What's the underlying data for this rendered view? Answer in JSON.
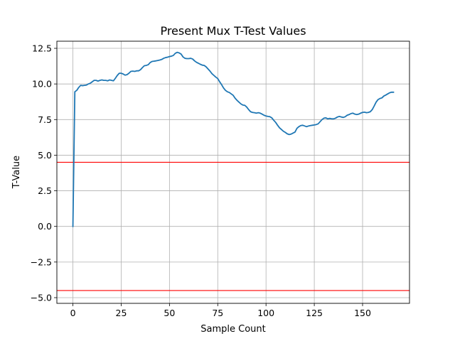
{
  "chart_data": {
    "type": "line",
    "title": "Present Mux T-Test Values",
    "xlabel": "Sample Count",
    "ylabel": "T-Value",
    "xlim": [
      -8.3,
      174.3
    ],
    "ylim": [
      -5.4,
      13.0
    ],
    "x_ticks": [
      0,
      25,
      50,
      75,
      100,
      125,
      150
    ],
    "x_tick_labels": [
      "0",
      "25",
      "50",
      "75",
      "100",
      "125",
      "150"
    ],
    "y_ticks": [
      -5.0,
      -2.5,
      0.0,
      2.5,
      5.0,
      7.5,
      10.0,
      12.5
    ],
    "y_tick_labels": [
      "−5.0",
      "−2.5",
      "0.0",
      "2.5",
      "5.0",
      "7.5",
      "10.0",
      "12.5"
    ],
    "grid": true,
    "series": [
      {
        "color": "#1f77b4",
        "x": [
          0,
          1,
          2,
          3,
          4,
          5,
          6,
          7,
          8,
          9,
          10,
          11,
          12,
          13,
          14,
          15,
          16,
          17,
          18,
          19,
          20,
          21,
          22,
          23,
          24,
          25,
          26,
          27,
          28,
          29,
          30,
          31,
          32,
          33,
          34,
          35,
          36,
          37,
          38,
          39,
          40,
          41,
          42,
          43,
          44,
          45,
          46,
          47,
          48,
          49,
          50,
          51,
          52,
          53,
          54,
          55,
          56,
          57,
          58,
          59,
          60,
          61,
          62,
          63,
          64,
          65,
          66,
          67,
          68,
          69,
          70,
          71,
          72,
          73,
          74,
          75,
          76,
          77,
          78,
          79,
          80,
          81,
          82,
          83,
          84,
          85,
          86,
          87,
          88,
          89,
          90,
          91,
          92,
          93,
          94,
          95,
          96,
          97,
          98,
          99,
          100,
          101,
          102,
          103,
          104,
          105,
          106,
          107,
          108,
          109,
          110,
          111,
          112,
          113,
          114,
          115,
          116,
          117,
          118,
          119,
          120,
          121,
          122,
          123,
          124,
          125,
          126,
          127,
          128,
          129,
          130,
          131,
          132,
          133,
          134,
          135,
          136,
          137,
          138,
          139,
          140,
          141,
          142,
          143,
          144,
          145,
          146,
          147,
          148,
          149,
          150,
          151,
          152,
          153,
          154,
          155,
          156,
          157,
          158,
          159,
          160,
          161,
          162,
          163,
          164,
          165,
          166
        ],
        "y": [
          0.0,
          9.45,
          9.55,
          9.75,
          9.9,
          9.88,
          9.9,
          9.92,
          10.0,
          10.05,
          10.15,
          10.25,
          10.25,
          10.2,
          10.25,
          10.28,
          10.25,
          10.25,
          10.22,
          10.28,
          10.25,
          10.22,
          10.4,
          10.6,
          10.75,
          10.75,
          10.7,
          10.62,
          10.65,
          10.75,
          10.88,
          10.9,
          10.88,
          10.92,
          10.92,
          11.0,
          11.15,
          11.28,
          11.3,
          11.35,
          11.5,
          11.58,
          11.6,
          11.62,
          11.65,
          11.68,
          11.72,
          11.8,
          11.85,
          11.88,
          11.92,
          11.95,
          12.0,
          12.15,
          12.22,
          12.18,
          12.1,
          11.9,
          11.8,
          11.78,
          11.78,
          11.8,
          11.75,
          11.62,
          11.52,
          11.45,
          11.38,
          11.32,
          11.3,
          11.2,
          11.05,
          10.9,
          10.72,
          10.6,
          10.48,
          10.38,
          10.15,
          9.95,
          9.72,
          9.55,
          9.45,
          9.4,
          9.3,
          9.2,
          9.0,
          8.85,
          8.72,
          8.6,
          8.52,
          8.5,
          8.38,
          8.2,
          8.05,
          8.0,
          7.98,
          7.95,
          7.98,
          7.95,
          7.88,
          7.8,
          7.75,
          7.72,
          7.7,
          7.62,
          7.45,
          7.3,
          7.1,
          6.92,
          6.8,
          6.68,
          6.6,
          6.5,
          6.45,
          6.48,
          6.55,
          6.62,
          6.88,
          7.0,
          7.08,
          7.1,
          7.05,
          7.0,
          7.05,
          7.08,
          7.1,
          7.12,
          7.15,
          7.2,
          7.35,
          7.5,
          7.6,
          7.62,
          7.55,
          7.58,
          7.55,
          7.55,
          7.6,
          7.68,
          7.72,
          7.68,
          7.65,
          7.7,
          7.8,
          7.85,
          7.92,
          7.95,
          7.88,
          7.85,
          7.88,
          7.95,
          8.0,
          8.02,
          7.98,
          8.0,
          8.05,
          8.2,
          8.45,
          8.72,
          8.9,
          8.98,
          9.02,
          9.15,
          9.22,
          9.3,
          9.38,
          9.42,
          9.42
        ]
      }
    ],
    "threshold_lines": [
      {
        "y": 4.5,
        "color": "#ff0000"
      },
      {
        "y": -4.5,
        "color": "#ff0000"
      }
    ]
  }
}
